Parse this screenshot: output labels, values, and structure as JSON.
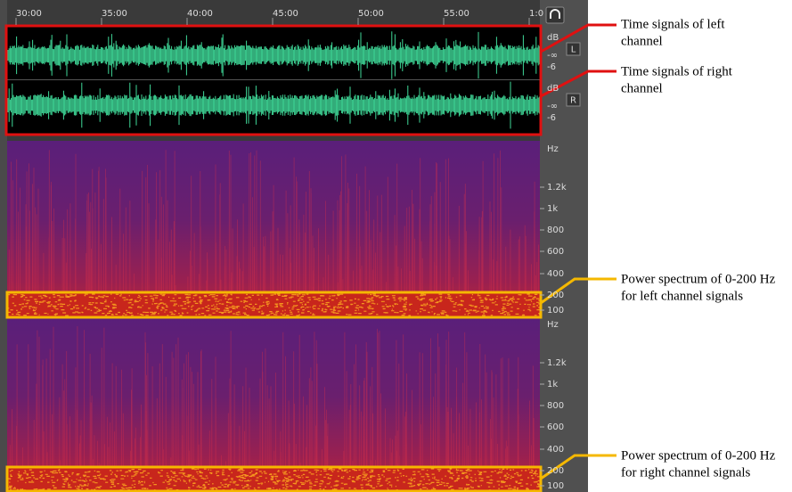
{
  "ruler": {
    "labels": [
      "30:00",
      "35:00",
      "40:00",
      "45:00",
      "50:00",
      "55:00",
      "1:0"
    ]
  },
  "waveform": {
    "channels": [
      {
        "button": "L",
        "db_labels": [
          "dB",
          "-∞",
          "-6"
        ]
      },
      {
        "button": "R",
        "db_labels": [
          "dB",
          "-∞",
          "-6"
        ]
      }
    ]
  },
  "spectrograms": [
    {
      "hz_labels": [
        "Hz",
        "1.2k",
        "1k",
        "800",
        "600",
        "400",
        "200",
        "100"
      ]
    },
    {
      "hz_labels": [
        "Hz",
        "1.2k",
        "1k",
        "800",
        "600",
        "400",
        "200",
        "100"
      ]
    }
  ],
  "annotations": [
    {
      "lines": [
        "Time signals of left",
        "channel"
      ]
    },
    {
      "lines": [
        "Time signals of right",
        "channel"
      ]
    },
    {
      "lines": [
        "Power spectrum of 0-200 Hz",
        "for left channel signals"
      ]
    },
    {
      "lines": [
        "Power spectrum of 0-200 Hz",
        "for right channel signals"
      ]
    }
  ]
}
